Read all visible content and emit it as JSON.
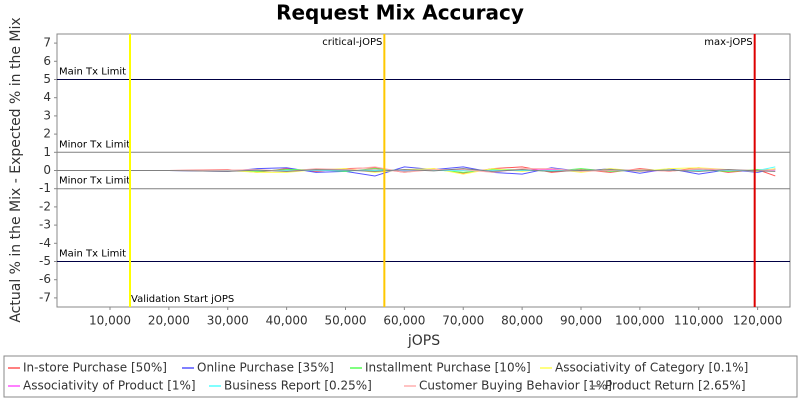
{
  "chart_data": {
    "type": "line",
    "title": "Request Mix Accuracy",
    "x_label": "jOPS",
    "y_label": "Actual % in the Mix - Expected % in the Mix",
    "xlim": [
      1000,
      125500
    ],
    "ylim": [
      -7.5,
      7.5
    ],
    "xticks": [
      {
        "value": 10000,
        "label": "10,000"
      },
      {
        "value": 20000,
        "label": "20,000"
      },
      {
        "value": 30000,
        "label": "30,000"
      },
      {
        "value": 40000,
        "label": "40,000"
      },
      {
        "value": 50000,
        "label": "50,000"
      },
      {
        "value": 60000,
        "label": "60,000"
      },
      {
        "value": 70000,
        "label": "70,000"
      },
      {
        "value": 80000,
        "label": "80,000"
      },
      {
        "value": 90000,
        "label": "90,000"
      },
      {
        "value": 100000,
        "label": "100,000"
      },
      {
        "value": 110000,
        "label": "110,000"
      },
      {
        "value": 120000,
        "label": "120,000"
      }
    ],
    "yticks": [
      -7,
      -6,
      -5,
      -4,
      -3,
      -2,
      -1,
      0,
      1,
      2,
      3,
      4,
      5,
      6,
      7
    ],
    "hlines": [
      {
        "value": 5,
        "label": "Main Tx Limit",
        "color": "#000044"
      },
      {
        "value": 1,
        "label": "Minor Tx Limit",
        "color": "#808080"
      },
      {
        "value": -1,
        "label": "Minor Tx Limit",
        "color": "#808080"
      },
      {
        "value": -5,
        "label": "Main Tx Limit",
        "color": "#000044"
      }
    ],
    "vlines": [
      {
        "value": 13400,
        "label": "Validation Start jOPS",
        "color": "#ffff00"
      },
      {
        "value": 56600,
        "label": "critical-jOPS",
        "color": "#ffc800"
      },
      {
        "value": 119500,
        "label": "max-jOPS",
        "color": "#dd0000"
      }
    ],
    "x": [
      1000,
      10000,
      20000,
      30000,
      35000,
      40000,
      45000,
      50000,
      55000,
      60000,
      65000,
      70000,
      75000,
      80000,
      85000,
      90000,
      95000,
      100000,
      105000,
      110000,
      115000,
      120000,
      123000
    ],
    "series": [
      {
        "name": "In-store Purchase [50%]",
        "color": "#ff5555",
        "values": [
          0,
          0,
          0,
          0.05,
          -0.1,
          0.1,
          -0.05,
          0.1,
          0.15,
          -0.1,
          0.1,
          -0.15,
          0.1,
          0.2,
          -0.1,
          0.05,
          -0.1,
          0.1,
          -0.05,
          0.15,
          -0.1,
          0.05,
          -0.3
        ]
      },
      {
        "name": "Online Purchase [35%]",
        "color": "#5555ff",
        "values": [
          0,
          0,
          0,
          -0.05,
          0.1,
          0.15,
          -0.1,
          -0.05,
          -0.3,
          0.2,
          0.05,
          0.2,
          -0.1,
          -0.2,
          0.15,
          -0.05,
          0.1,
          -0.15,
          0.1,
          -0.2,
          0.05,
          -0.1,
          0.1
        ]
      },
      {
        "name": "Installment Purchase [10%]",
        "color": "#55ff55",
        "values": [
          0,
          0,
          0,
          0,
          -0.05,
          0.05,
          0.05,
          -0.05,
          0.1,
          -0.05,
          0.05,
          -0.1,
          0.05,
          0.05,
          -0.05,
          0.1,
          -0.05,
          0.05,
          0,
          0.05,
          -0.05,
          0.05,
          0.05
        ]
      },
      {
        "name": "Associativity of Category [0.1%]",
        "color": "#ffff55",
        "values": [
          0,
          0,
          0,
          0,
          -0.1,
          -0.1,
          0.05,
          0.1,
          -0.1,
          0.05,
          0.1,
          -0.2,
          0.1,
          -0.05,
          0.1,
          -0.1,
          0.1,
          -0.05,
          0.1,
          0.15,
          0.05,
          -0.05,
          0.1
        ]
      },
      {
        "name": "Associativity of Product [1%]",
        "color": "#ff55ff",
        "values": [
          0,
          0,
          0,
          0,
          0.02,
          -0.02,
          0.02,
          0,
          0.02,
          -0.02,
          0.03,
          0,
          -0.02,
          0.02,
          0.05,
          0,
          0.02,
          -0.02,
          0,
          0.02,
          0,
          0,
          0.02
        ]
      },
      {
        "name": "Business Report [0.25%]",
        "color": "#55ffff",
        "values": [
          0,
          0,
          0,
          0,
          0.01,
          0,
          0.01,
          -0.01,
          0,
          0.02,
          0,
          -0.01,
          0.01,
          0,
          0,
          0.01,
          -0.01,
          0,
          0.01,
          0,
          0.01,
          0,
          0.2
        ]
      },
      {
        "name": "Customer Buying Behavior [1%]",
        "color": "#ffafaf",
        "values": [
          0,
          0,
          0,
          0.02,
          0.05,
          -0.05,
          0.1,
          0.05,
          0.2,
          -0.1,
          0.05,
          0.05,
          -0.1,
          0.1,
          0.1,
          -0.05,
          0,
          0.05,
          -0.05,
          0.1,
          0.05,
          0,
          0.05
        ]
      },
      {
        "name": "Product Return [2.65%]",
        "color": "#808080",
        "values": [
          0,
          0,
          0,
          -0.05,
          0.02,
          -0.05,
          0.05,
          0.02,
          -0.05,
          0.05,
          -0.02,
          0.1,
          -0.05,
          0.05,
          -0.05,
          0,
          0.05,
          -0.02,
          0.02,
          -0.05,
          0.05,
          -0.02,
          -0.05
        ]
      }
    ]
  }
}
